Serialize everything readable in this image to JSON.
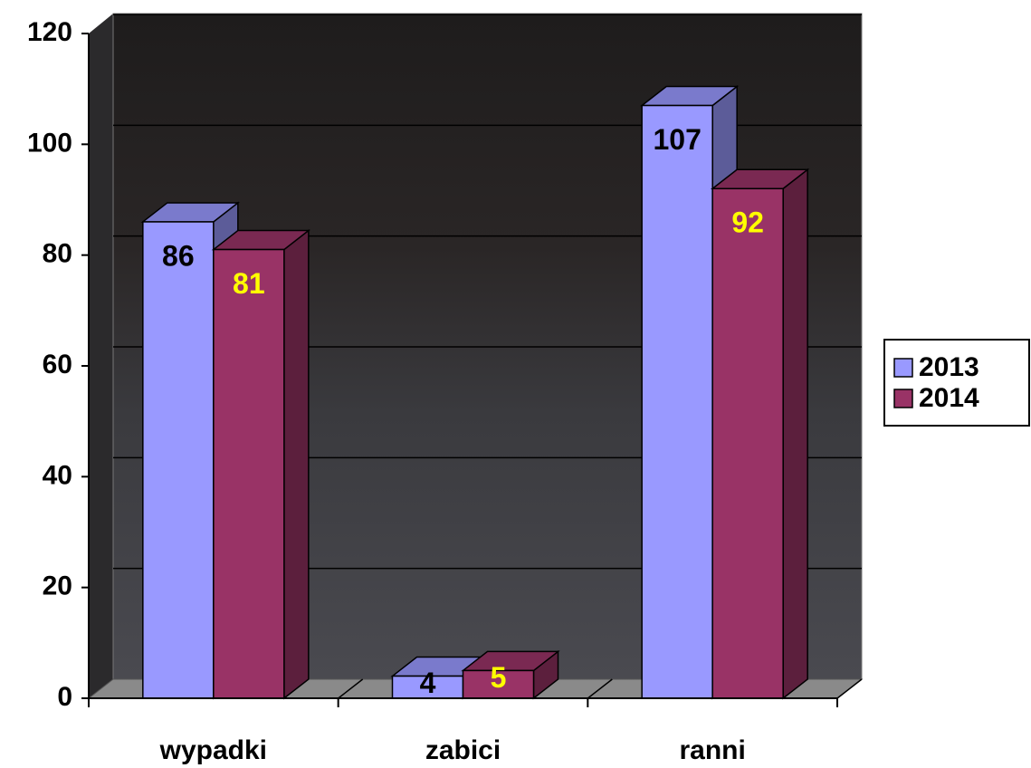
{
  "chart_data": {
    "type": "bar3d",
    "categories": [
      "wypadki",
      "zabici",
      "ranni"
    ],
    "series": [
      {
        "name": "2013",
        "color": "#9999ff",
        "label_color": "#000000",
        "values": [
          86,
          4,
          107
        ]
      },
      {
        "name": "2014",
        "color": "#993366",
        "label_color": "#ffff00",
        "values": [
          81,
          5,
          92
        ]
      }
    ],
    "ylim": [
      0,
      120
    ],
    "yticks": [
      0,
      20,
      40,
      60,
      80,
      100,
      120
    ],
    "grid": true,
    "legend": "right"
  }
}
